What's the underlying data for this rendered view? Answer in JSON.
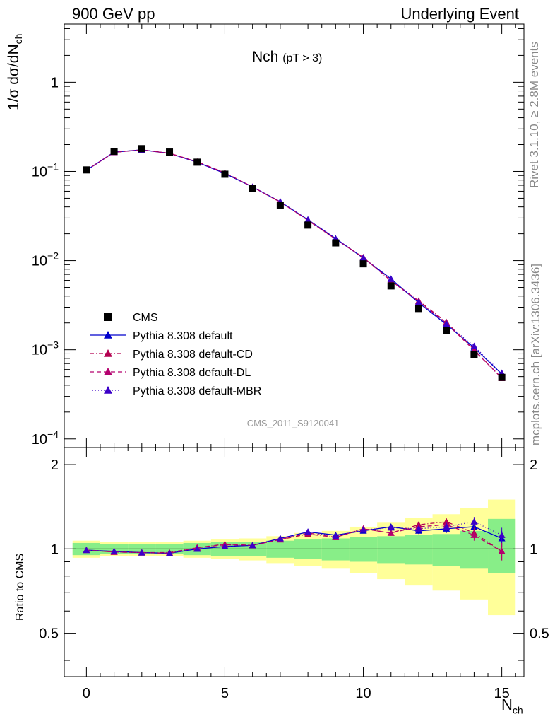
{
  "header": {
    "left": "900 GeV pp",
    "right": "Underlying Event"
  },
  "side_labels": {
    "rivet": "Rivet 3.1.10, ≥ 2.8M events",
    "mcplots": "mcplots.cern.ch [arXiv:1306.3436]"
  },
  "plot": {
    "title_main": "Nch",
    "title_sub": "(pT >  3)",
    "ylabel": "1/σ dσ/dN",
    "ylabel_sub": "ch",
    "watermark": "CMS_2011_S9120041",
    "ytick_major_labels": [
      {
        "mant": "10",
        "exp": "−4",
        "v": 0.0001
      },
      {
        "mant": "10",
        "exp": "−3",
        "v": 0.001
      },
      {
        "mant": "10",
        "exp": "−2",
        "v": 0.01
      },
      {
        "mant": "10",
        "exp": "−1",
        "v": 0.1
      },
      {
        "mant": "1",
        "exp": "",
        "v": 1
      }
    ]
  },
  "ratio": {
    "ylabel": "Ratio to CMS",
    "ytick_labels": [
      "0.5",
      "1",
      "2"
    ],
    "xtick_labels": [
      "0",
      "5",
      "10",
      "15"
    ],
    "xlabel": "N",
    "xlabel_sub": "ch"
  },
  "legend": [
    {
      "label": "CMS",
      "style": "data",
      "color": "#000000"
    },
    {
      "label": "Pythia 8.308 default",
      "style": "solid",
      "color": "#0000cc"
    },
    {
      "label": "Pythia 8.308 default-CD",
      "style": "dashdot",
      "color": "#b40050"
    },
    {
      "label": "Pythia 8.308 default-DL",
      "style": "dash",
      "color": "#b4006e"
    },
    {
      "label": "Pythia 8.308 default-MBR",
      "style": "dot",
      "color": "#3c00c8"
    }
  ],
  "chart_data": {
    "type": "line",
    "x": [
      0,
      1,
      2,
      3,
      4,
      5,
      6,
      7,
      8,
      9,
      10,
      11,
      12,
      13,
      14,
      15
    ],
    "xlim": [
      -0.8,
      15.8
    ],
    "ylim": [
      8e-05,
      4.5
    ],
    "ylog": true,
    "ratio_ylim": [
      0.35,
      2.3
    ],
    "ratio_ylog": true,
    "data": [
      0.104,
      0.168,
      0.18,
      0.165,
      0.127,
      0.093,
      0.065,
      0.042,
      0.025,
      0.0158,
      0.0092,
      0.0052,
      0.0029,
      0.00163,
      0.00088,
      0.00049
    ],
    "band_inner": [
      0.05,
      0.04,
      0.04,
      0.04,
      0.05,
      0.06,
      0.06,
      0.07,
      0.08,
      0.09,
      0.1,
      0.11,
      0.12,
      0.13,
      0.15,
      0.18
    ],
    "band_outer": [
      0.07,
      0.06,
      0.06,
      0.06,
      0.07,
      0.08,
      0.09,
      0.11,
      0.13,
      0.15,
      0.18,
      0.22,
      0.26,
      0.29,
      0.34,
      0.42
    ],
    "band_outer_up": [
      0.07,
      0.06,
      0.06,
      0.06,
      0.07,
      0.08,
      0.09,
      0.11,
      0.14,
      0.16,
      0.2,
      0.24,
      0.29,
      0.33,
      0.4,
      0.5
    ],
    "band_inner_up": [
      0.05,
      0.04,
      0.04,
      0.04,
      0.05,
      0.06,
      0.06,
      0.07,
      0.08,
      0.09,
      0.1,
      0.11,
      0.12,
      0.13,
      0.16,
      0.28
    ],
    "series": [
      {
        "name": "Pythia 8.308 default",
        "color": "#0000cc",
        "dash": "",
        "ratio": [
          0.99,
          0.98,
          0.97,
          0.965,
          1.0,
          1.02,
          1.03,
          1.09,
          1.15,
          1.12,
          1.16,
          1.2,
          1.16,
          1.18,
          1.2,
          1.09
        ],
        "rerr": [
          0.005,
          0.005,
          0.005,
          0.005,
          0.005,
          0.006,
          0.007,
          0.01,
          0.012,
          0.015,
          0.02,
          0.025,
          0.03,
          0.04,
          0.05,
          0.07
        ]
      },
      {
        "name": "Pythia 8.308 default-CD",
        "color": "#b40050",
        "dash": "6,3,1,3",
        "ratio": [
          0.99,
          0.975,
          0.97,
          0.97,
          1.01,
          1.04,
          1.03,
          1.08,
          1.13,
          1.1,
          1.18,
          1.14,
          1.22,
          1.25,
          1.14,
          0.98
        ],
        "rerr": [
          0.005,
          0.005,
          0.005,
          0.005,
          0.005,
          0.006,
          0.007,
          0.01,
          0.012,
          0.015,
          0.02,
          0.025,
          0.03,
          0.04,
          0.05,
          0.07
        ]
      },
      {
        "name": "Pythia 8.308 default-DL",
        "color": "#b4006e",
        "dash": "6,4",
        "ratio": [
          0.99,
          0.975,
          0.97,
          0.965,
          1.01,
          1.035,
          1.03,
          1.08,
          1.14,
          1.1,
          1.18,
          1.14,
          1.2,
          1.22,
          1.12,
          0.98
        ],
        "rerr": [
          0.005,
          0.005,
          0.005,
          0.005,
          0.005,
          0.006,
          0.007,
          0.01,
          0.012,
          0.015,
          0.02,
          0.025,
          0.03,
          0.04,
          0.05,
          0.07
        ]
      },
      {
        "name": "Pythia 8.308 default-MBR",
        "color": "#3c00c8",
        "dash": "1,3",
        "ratio": [
          0.99,
          0.98,
          0.97,
          0.965,
          1.0,
          1.02,
          1.03,
          1.09,
          1.15,
          1.11,
          1.17,
          1.19,
          1.18,
          1.2,
          1.25,
          1.12
        ],
        "rerr": [
          0.005,
          0.005,
          0.005,
          0.005,
          0.005,
          0.006,
          0.007,
          0.01,
          0.012,
          0.015,
          0.02,
          0.025,
          0.03,
          0.04,
          0.05,
          0.07
        ]
      }
    ]
  }
}
